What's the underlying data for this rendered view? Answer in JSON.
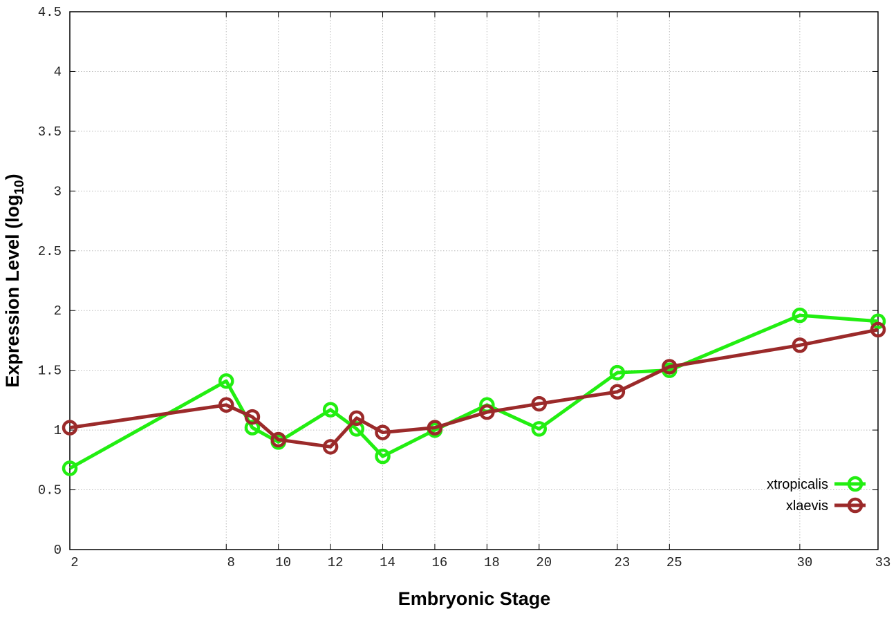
{
  "chart_data": {
    "type": "line",
    "title": "",
    "xlabel": "Embryonic Stage",
    "ylabel_prefix": "Expression Level (log",
    "ylabel_sub": "10",
    "ylabel_suffix": ")",
    "xlim": [
      2,
      33
    ],
    "ylim": [
      0,
      4.5
    ],
    "grid": true,
    "legend_placement": "bottom-right",
    "x_ticks": [
      2,
      8,
      10,
      12,
      14,
      16,
      18,
      20,
      23,
      25,
      30,
      33
    ],
    "x_tick_labels": [
      "2",
      "8",
      "10",
      "12",
      "14",
      "16",
      "18",
      "20",
      "23",
      "25",
      "30",
      "33"
    ],
    "y_ticks": [
      0,
      0.5,
      1,
      1.5,
      2,
      2.5,
      3,
      3.5,
      4,
      4.5
    ],
    "y_tick_labels": [
      "0",
      "0.5",
      "1",
      "1.5",
      "2",
      "2.5",
      "3",
      "3.5",
      "4",
      "4.5"
    ],
    "x": [
      2,
      8,
      9,
      10,
      12,
      13,
      14,
      16,
      18,
      20,
      23,
      25,
      30,
      33
    ],
    "series": [
      {
        "name": "xtropicalis",
        "color": "#22ee11",
        "values": [
          0.68,
          1.41,
          1.02,
          0.9,
          1.17,
          1.01,
          0.78,
          1.0,
          1.21,
          1.01,
          1.48,
          1.5,
          1.96,
          1.91
        ]
      },
      {
        "name": "xlaevis",
        "color": "#9b2a2a",
        "values": [
          1.02,
          1.21,
          1.11,
          0.92,
          0.86,
          1.1,
          0.98,
          1.02,
          1.15,
          1.22,
          1.32,
          1.53,
          1.71,
          1.84
        ]
      }
    ]
  }
}
